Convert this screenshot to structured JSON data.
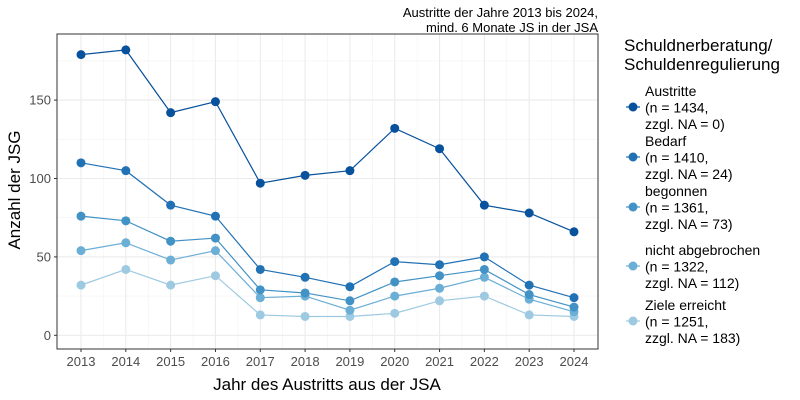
{
  "chart_data": {
    "type": "line",
    "title": "Austritte der Jahre 2013 bis 2024,",
    "subtitle": "mind. 6 Monate JS in der JSA",
    "xlabel": "Jahr des Austritts aus der JSA",
    "ylabel": "Anzahl der JSG",
    "x": [
      "2013",
      "2014",
      "2015",
      "2016",
      "2017",
      "2018",
      "2019",
      "2020",
      "2021",
      "2022",
      "2023",
      "2024"
    ],
    "ylim": [
      -10,
      192
    ],
    "yticks": [
      "0",
      "50",
      "100",
      "150"
    ],
    "grid": true,
    "legend": {
      "title_line1": "Schuldnerberatung/",
      "title_line2": "Schuldenregulierung",
      "placement": "right"
    },
    "series": [
      {
        "name": "Austritte",
        "n": "(n = 1434,",
        "na": "zzgl. NA = 0)",
        "color": "#08519c",
        "values": [
          179,
          182,
          142,
          149,
          97,
          102,
          105,
          132,
          119,
          83,
          78,
          66
        ]
      },
      {
        "name": "Bedarf",
        "n": "(n = 1410,",
        "na": "zzgl. NA = 24)",
        "color": "#2171b5",
        "values": [
          110,
          105,
          83,
          76,
          42,
          37,
          31,
          47,
          45,
          50,
          32,
          24
        ]
      },
      {
        "name": "begonnen",
        "n": "(n = 1361,",
        "na": "zzgl. NA = 73)",
        "color": "#4292c6",
        "values": [
          76,
          73,
          60,
          62,
          29,
          27,
          22,
          34,
          38,
          42,
          26,
          18
        ]
      },
      {
        "name": "nicht abgebrochen",
        "n": "(n = 1322,",
        "na": "zzgl. NA = 112)",
        "color": "#6baed6",
        "values": [
          54,
          59,
          48,
          54,
          24,
          25,
          16,
          25,
          30,
          37,
          23,
          15
        ]
      },
      {
        "name": "Ziele erreicht",
        "n": "(n = 1251,",
        "na": "zzgl. NA = 183)",
        "color": "#9ecae1",
        "values": [
          32,
          42,
          32,
          38,
          13,
          12,
          12,
          14,
          22,
          25,
          13,
          12
        ]
      }
    ]
  }
}
